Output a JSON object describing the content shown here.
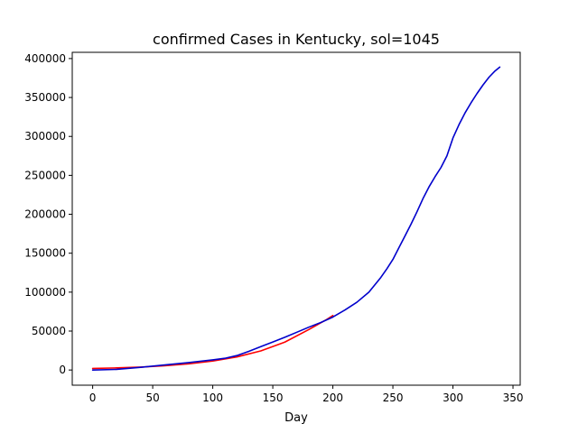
{
  "chart_data": {
    "type": "line",
    "title": "confirmed Cases in Kentucky, sol=1045",
    "xlabel": "Day",
    "ylabel": "",
    "xlim": [
      -17,
      356
    ],
    "ylim": [
      -19500,
      408000
    ],
    "xticks": [
      0,
      50,
      100,
      150,
      200,
      250,
      300,
      350
    ],
    "yticks": [
      0,
      50000,
      100000,
      150000,
      200000,
      250000,
      300000,
      350000,
      400000
    ],
    "grid": false,
    "legend": "none",
    "series": [
      {
        "color": "#ff0000",
        "x": [
          0,
          20,
          40,
          60,
          80,
          100,
          120,
          140,
          160,
          180,
          195,
          200
        ],
        "values": [
          2000,
          2700,
          3800,
          5400,
          7900,
          11500,
          16800,
          24500,
          35800,
          52000,
          65000,
          70000
        ]
      },
      {
        "color": "#0000cc",
        "x": [
          0,
          20,
          40,
          60,
          80,
          100,
          110,
          120,
          130,
          140,
          150,
          160,
          170,
          180,
          190,
          200,
          210,
          220,
          230,
          240,
          245,
          250,
          255,
          260,
          265,
          270,
          275,
          280,
          285,
          290,
          295,
          300,
          305,
          310,
          315,
          320,
          325,
          330,
          335,
          339
        ],
        "values": [
          0,
          800,
          3500,
          6500,
          9500,
          13000,
          15000,
          18500,
          24000,
          30000,
          36000,
          42000,
          48500,
          55000,
          61000,
          68000,
          77000,
          87000,
          100000,
          119000,
          130000,
          142000,
          157000,
          172000,
          187000,
          203000,
          220000,
          235000,
          248000,
          260000,
          275000,
          298000,
          315000,
          330000,
          343000,
          355000,
          366000,
          376000,
          384000,
          389000
        ]
      }
    ]
  }
}
